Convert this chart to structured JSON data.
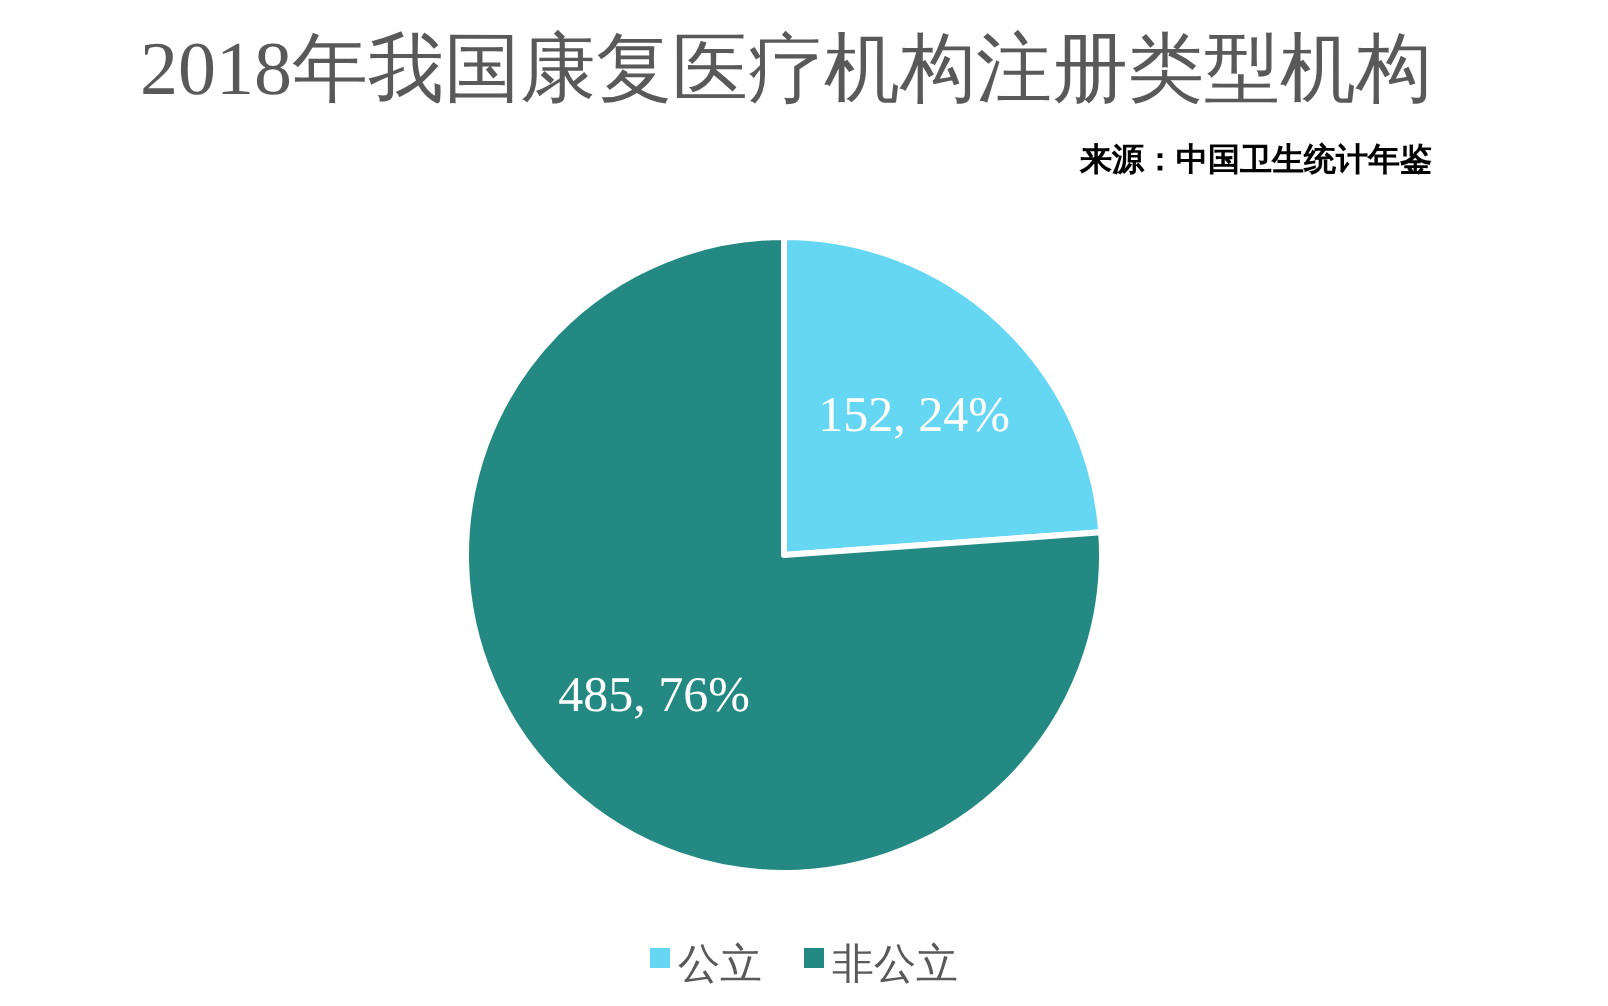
{
  "chart_data": {
    "type": "pie",
    "title": "2018年我国康复医疗机构注册类型机构",
    "annotations": [
      "来源：中国卫生统计年鉴"
    ],
    "categories": [
      "公立",
      "非公立"
    ],
    "values": [
      152,
      485
    ],
    "colors": [
      "#66d7f2",
      "#238982"
    ],
    "value_labels": [
      "152, 24%",
      "485, 76%"
    ],
    "legend": "bottom"
  }
}
